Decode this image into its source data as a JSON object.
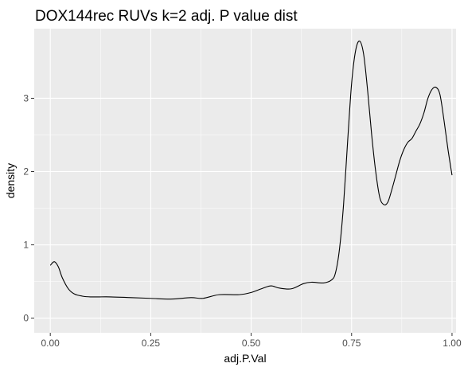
{
  "chart_data": {
    "type": "line",
    "title": "DOX144rec RUVs k=2 adj. P value dist",
    "xlabel": "adj.P.Val",
    "ylabel": "density",
    "xlim": [
      -0.04,
      1.01
    ],
    "ylim": [
      -0.2,
      3.95
    ],
    "x_ticks": [
      0.0,
      0.25,
      0.5,
      0.75,
      1.0
    ],
    "x_tick_labels": [
      "0.00",
      "0.25",
      "0.50",
      "0.75",
      "1.00"
    ],
    "y_ticks": [
      0,
      1,
      2,
      3
    ],
    "y_tick_labels": [
      "0",
      "1",
      "2",
      "3"
    ],
    "grid": true,
    "panel_background": "#ebebeb",
    "line_color": "#000000",
    "series": [
      {
        "x": [
          0.0,
          0.01,
          0.02,
          0.03,
          0.045,
          0.06,
          0.08,
          0.1,
          0.15,
          0.2,
          0.25,
          0.3,
          0.35,
          0.38,
          0.42,
          0.47,
          0.5,
          0.53,
          0.55,
          0.57,
          0.6,
          0.63,
          0.65,
          0.68,
          0.7,
          0.71,
          0.72,
          0.73,
          0.74,
          0.75,
          0.76,
          0.77,
          0.78,
          0.79,
          0.8,
          0.81,
          0.82,
          0.83,
          0.84,
          0.85,
          0.86,
          0.87,
          0.88,
          0.89,
          0.9,
          0.91,
          0.92,
          0.93,
          0.94,
          0.95,
          0.96,
          0.97,
          0.98,
          0.99,
          1.0
        ],
        "y": [
          0.72,
          0.77,
          0.7,
          0.55,
          0.4,
          0.33,
          0.3,
          0.29,
          0.29,
          0.28,
          0.27,
          0.26,
          0.28,
          0.27,
          0.32,
          0.32,
          0.35,
          0.41,
          0.44,
          0.41,
          0.4,
          0.47,
          0.49,
          0.48,
          0.52,
          0.62,
          0.95,
          1.55,
          2.4,
          3.2,
          3.65,
          3.78,
          3.6,
          3.1,
          2.5,
          2.0,
          1.65,
          1.55,
          1.58,
          1.75,
          1.95,
          2.15,
          2.3,
          2.4,
          2.45,
          2.55,
          2.65,
          2.8,
          3.0,
          3.12,
          3.15,
          3.05,
          2.7,
          2.3,
          1.95
        ]
      }
    ]
  }
}
